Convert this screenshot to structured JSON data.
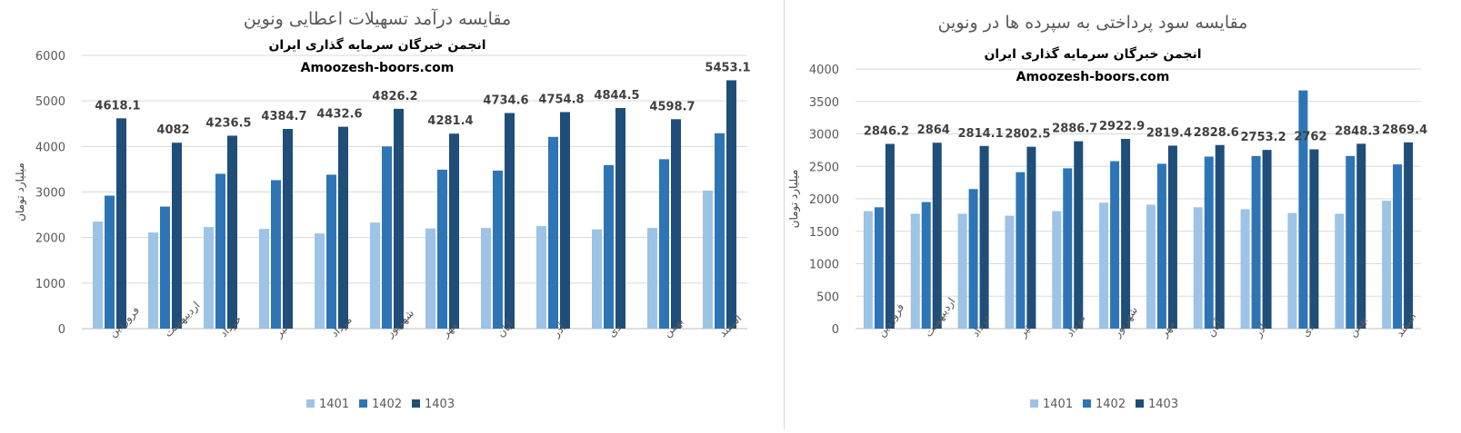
{
  "colors": {
    "s1401": "#9dc3e6",
    "s1402": "#2e75b6",
    "s1403": "#1f4e79",
    "grid": "#d9d9d9"
  },
  "chart_data": [
    {
      "type": "bar",
      "title": "مقایسه درآمد تسهیلات اعطایی  ونوین",
      "subtitle": "انجمن خبرگان سرمایه گذاری ایران",
      "watermark": "Amoozesh-boors.com",
      "ylabel": "میلیارد تومان",
      "ylim": [
        0,
        6000
      ],
      "yticks": [
        0,
        1000,
        2000,
        3000,
        4000,
        5000,
        6000
      ],
      "grid": true,
      "legend": "bottom",
      "categories": [
        "فروردین",
        "اردیبهشت",
        "خرداد",
        "تیر",
        "مرداد",
        "شهریور",
        "مهر",
        "آبان",
        "آذر",
        "دی",
        "بهمن",
        "اسفند"
      ],
      "series": [
        {
          "name": "1401",
          "values": [
            2350,
            2110,
            2230,
            2190,
            2090,
            2330,
            2200,
            2210,
            2250,
            2180,
            2210,
            3030
          ]
        },
        {
          "name": "1402",
          "values": [
            2920,
            2680,
            3400,
            3260,
            3380,
            4000,
            3490,
            3470,
            4210,
            3590,
            3720,
            4290
          ]
        },
        {
          "name": "1403",
          "values": [
            4618.1,
            4082,
            4236.5,
            4384.7,
            4432.6,
            4826.2,
            4281.4,
            4734.6,
            4754.8,
            4844.5,
            4598.7,
            5453.1
          ]
        }
      ],
      "data_labels": [
        "4618.1",
        "4082",
        "4236.5",
        "4384.7",
        "4432.6",
        "4826.2",
        "4281.4",
        "4734.6",
        "4754.8",
        "4844.5",
        "4598.7",
        "5453.1"
      ]
    },
    {
      "type": "bar",
      "title": "مقایسه سود پرداختی به سپرده ها در ونوین",
      "subtitle": "انجمن خبرگان سرمایه گذاری ایران",
      "watermark": "Amoozesh-boors.com",
      "ylabel": "میلیارد تومان",
      "ylim": [
        0,
        4000
      ],
      "yticks": [
        0,
        500,
        1000,
        1500,
        2000,
        2500,
        3000,
        3500,
        4000
      ],
      "grid": true,
      "legend": "bottom",
      "categories": [
        "فروردین",
        "اردیبهشت",
        "خرداد",
        "تیر",
        "مرداد",
        "شهریور",
        "مهر",
        "آبان",
        "آذر",
        "دی",
        "بهمن",
        "اسفند"
      ],
      "series": [
        {
          "name": "1401",
          "values": [
            1810,
            1770,
            1770,
            1740,
            1810,
            1940,
            1910,
            1870,
            1840,
            1780,
            1770,
            1970
          ]
        },
        {
          "name": "1402",
          "values": [
            1870,
            1950,
            2150,
            2410,
            2470,
            2580,
            2540,
            2650,
            2660,
            3670,
            2660,
            2530
          ]
        },
        {
          "name": "1403",
          "values": [
            2846.2,
            2864,
            2814.1,
            2802.5,
            2886.7,
            2922.9,
            2819.4,
            2828.6,
            2753.2,
            2762,
            2848.3,
            2869.4
          ]
        }
      ],
      "data_labels": [
        "2846.2",
        "2864",
        "2814.1",
        "2802.5",
        "2886.7",
        "2922.9",
        "2819.4",
        "2828.6",
        "2753.2",
        "2762",
        "2848.3",
        "2869.4"
      ]
    }
  ]
}
